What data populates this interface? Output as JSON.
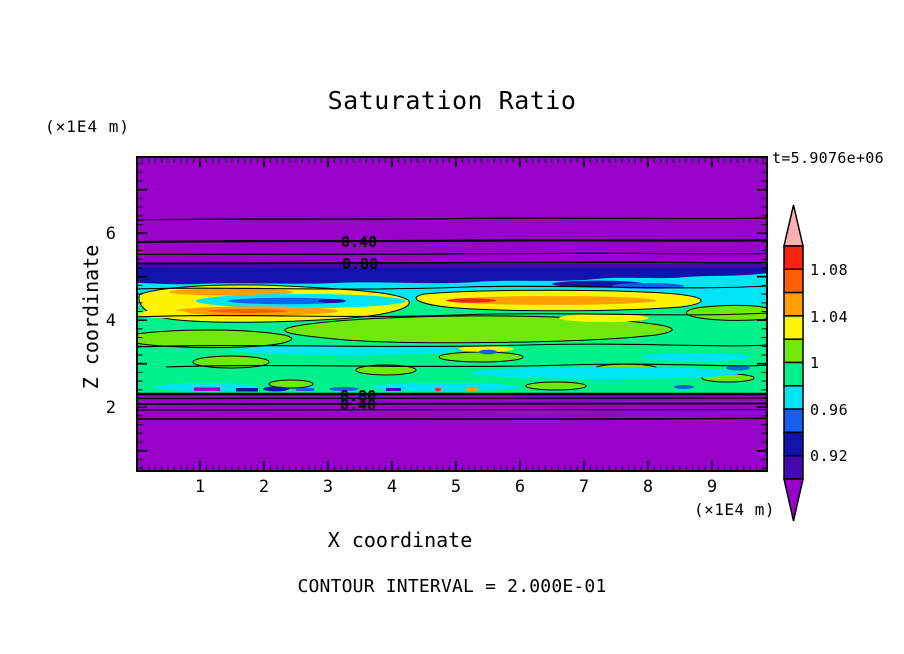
{
  "title": "Saturation Ratio",
  "time_label": "t=5.9076e+06",
  "axes": {
    "x": {
      "label": "X coordinate",
      "unit": "(×1E4 m)",
      "ticks": [
        "1",
        "2",
        "3",
        "4",
        "5",
        "6",
        "7",
        "8",
        "9"
      ]
    },
    "y": {
      "label": "Z coordinate",
      "unit": "(×1E4 m)",
      "ticks": [
        "6",
        "4",
        "2"
      ]
    }
  },
  "footer_note": "CONTOUR INTERVAL = 2.000E-01",
  "contour_labels": {
    "top_040": "0.40",
    "top_080": "0.80",
    "bottom_080": "0.80",
    "bottom_040": "0.40"
  },
  "colorbar": {
    "labels": [
      "1.08",
      "1.04",
      "1",
      "0.96",
      "0.92"
    ],
    "colors": [
      "#F42511",
      "#FF5F00",
      "#FFA000",
      "#FFF500",
      "#70E80C",
      "#00F08C",
      "#00E5F5",
      "#155FF0",
      "#1212AC",
      "#4408B0"
    ],
    "arrow_top_color": "#FFAFB4",
    "arrow_bottom_color": "#9803C9"
  },
  "palette": {
    "purple": "#9803C9",
    "indigo": "#4408B0",
    "navy": "#1212AC",
    "blue": "#155FF0",
    "cyan": "#00E5F5",
    "springgreen": "#00F08C",
    "chartreuse": "#70E80C",
    "yellow": "#FFF500",
    "orange": "#FFA000",
    "orangered": "#FF5F00",
    "red": "#F42511",
    "pink": "#FFAFB4",
    "line": "#000000"
  },
  "chart_data": {
    "type": "heatmap",
    "subtype": "filled-contour",
    "title": "Saturation Ratio",
    "xlabel": "X coordinate",
    "ylabel": "Z coordinate",
    "x_unit": "(×1E4 m)",
    "y_unit": "(×1E4 m)",
    "xlim": [
      0,
      9.9
    ],
    "ylim": [
      0.5,
      7.8
    ],
    "x_ticks": [
      1,
      2,
      3,
      4,
      5,
      6,
      7,
      8,
      9
    ],
    "y_ticks": [
      2,
      4,
      6
    ],
    "time_annotation": "t=5.9076e+06",
    "contour_interval": 0.2,
    "contour_interval_label": "CONTOUR INTERVAL = 2.000E-01",
    "colorbar_boundaries": [
      0.9,
      0.92,
      0.94,
      0.96,
      0.98,
      1.0,
      1.02,
      1.04,
      1.06,
      1.08,
      1.1
    ],
    "colorbar_labeled_values": [
      1.08,
      1.04,
      1.0,
      0.96,
      0.92
    ],
    "labeled_contours_top_region": [
      0.4,
      0.8
    ],
    "labeled_contours_bottom_region": [
      0.8,
      0.4
    ],
    "regions": [
      {
        "z_range": [
          5.3,
          7.8
        ],
        "value": "saturation ratio < 0.9 (purple); contour lines at 0.2,0.4,0.6,0.8 with labels 0.40 and 0.80"
      },
      {
        "z_range": [
          5.0,
          5.3
        ],
        "value": "dark blue/indigo band, ratio ≈ 0.90–0.94"
      },
      {
        "z_range": [
          2.0,
          5.0
        ],
        "value": "near-saturated band ≈ 0.96–1.10: green/spring-green body, cyan-blue patches ≈0.94–0.98, yellow-orange streaks ≈1.04–1.08 near z≈4.3–4.7, small red maxima ≈1.10"
      },
      {
        "z_range": [
          1.95,
          2.0
        ],
        "value": "thin mixed layer with blue/orange/red specks"
      },
      {
        "z_range": [
          0.5,
          1.95
        ],
        "value": "ratio < 0.9 (purple); contour lines 0.8→0.2 with overlapping labels 0.80 and 0.40"
      }
    ]
  }
}
